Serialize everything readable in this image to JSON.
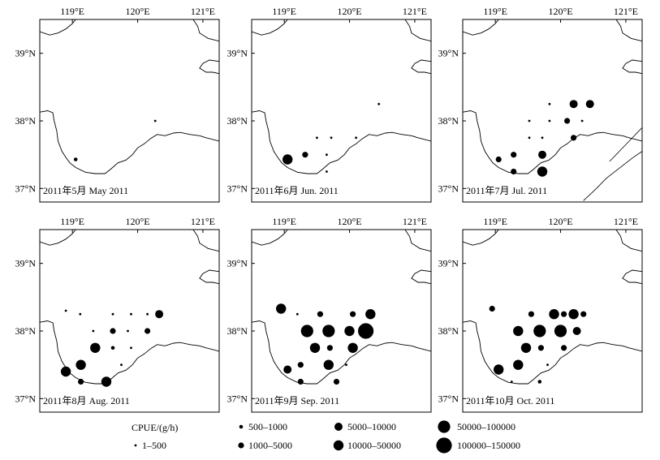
{
  "lon_ticks": [
    "119°E",
    "120°E",
    "121°E"
  ],
  "lat_ticks": [
    "39°N",
    "38°N",
    "37°N"
  ],
  "legend": {
    "title": "CPUE/(g/h)",
    "classes": [
      {
        "label": "1–500",
        "icon": "dot-size-1"
      },
      {
        "label": "500–1000",
        "icon": "dot-size-2"
      },
      {
        "label": "1000–5000",
        "icon": "dot-size-3"
      },
      {
        "label": "5000–10000",
        "icon": "dot-size-4"
      },
      {
        "label": "10000–50000",
        "icon": "dot-size-5"
      },
      {
        "label": "50000–100000",
        "icon": "dot-size-6"
      },
      {
        "label": "100000–150000",
        "icon": "dot-size-7"
      }
    ]
  },
  "panels": [
    {
      "caption": "2011年5月  May 2011",
      "points": [
        [
          119.05,
          37.43,
          2
        ],
        [
          120.27,
          38.0,
          1
        ]
      ]
    },
    {
      "caption": "2011年6月  Jun. 2011",
      "points": [
        [
          119.05,
          37.43,
          5
        ],
        [
          119.32,
          37.5,
          3
        ],
        [
          119.5,
          37.75,
          1
        ],
        [
          119.72,
          37.75,
          1
        ],
        [
          119.65,
          37.5,
          1
        ],
        [
          119.65,
          37.25,
          1
        ],
        [
          120.1,
          37.75,
          1
        ],
        [
          120.45,
          38.25,
          1
        ]
      ]
    },
    {
      "caption": "2011年7月  Jul. 2011",
      "points": [
        [
          119.05,
          37.43,
          3
        ],
        [
          119.28,
          37.5,
          3
        ],
        [
          119.28,
          37.25,
          3
        ],
        [
          119.52,
          37.75,
          1
        ],
        [
          119.52,
          38.0,
          1
        ],
        [
          119.72,
          37.75,
          1
        ],
        [
          119.72,
          37.5,
          4
        ],
        [
          119.72,
          37.25,
          5
        ],
        [
          119.83,
          38.0,
          1
        ],
        [
          119.83,
          38.25,
          1
        ],
        [
          120.1,
          38.0,
          3
        ],
        [
          120.2,
          38.25,
          4
        ],
        [
          120.2,
          37.75,
          3
        ],
        [
          120.33,
          38.0,
          1
        ],
        [
          120.45,
          38.25,
          4
        ]
      ]
    },
    {
      "caption": "2011年8月  Aug. 2011",
      "points": [
        [
          118.9,
          37.4,
          5
        ],
        [
          119.13,
          37.5,
          5
        ],
        [
          119.13,
          37.25,
          3
        ],
        [
          119.35,
          37.75,
          5
        ],
        [
          119.32,
          38.0,
          1
        ],
        [
          119.52,
          37.25,
          5
        ],
        [
          119.62,
          37.75,
          2
        ],
        [
          119.62,
          38.0,
          3
        ],
        [
          119.75,
          37.5,
          1
        ],
        [
          118.9,
          38.3,
          1
        ],
        [
          119.12,
          38.25,
          1
        ],
        [
          119.62,
          38.25,
          1
        ],
        [
          119.85,
          38.0,
          1
        ],
        [
          119.9,
          37.75,
          1
        ],
        [
          119.9,
          38.25,
          1
        ],
        [
          120.15,
          38.0,
          3
        ],
        [
          120.15,
          38.25,
          1
        ],
        [
          120.33,
          38.25,
          4
        ]
      ]
    },
    {
      "caption": "2011年9月  Sep. 2011",
      "points": [
        [
          119.05,
          37.43,
          4
        ],
        [
          119.25,
          37.25,
          3
        ],
        [
          119.25,
          37.5,
          3
        ],
        [
          119.35,
          38.0,
          6
        ],
        [
          119.47,
          37.75,
          5
        ],
        [
          119.55,
          38.25,
          3
        ],
        [
          119.68,
          37.5,
          5
        ],
        [
          119.68,
          38.0,
          6
        ],
        [
          119.7,
          37.75,
          3
        ],
        [
          119.8,
          37.25,
          3
        ],
        [
          119.95,
          37.5,
          1
        ],
        [
          120.0,
          38.0,
          5
        ],
        [
          120.05,
          37.75,
          5
        ],
        [
          120.05,
          38.25,
          3
        ],
        [
          120.25,
          38.0,
          7
        ],
        [
          120.32,
          38.25,
          5
        ],
        [
          119.2,
          38.25,
          1
        ],
        [
          118.95,
          38.33,
          5
        ]
      ]
    },
    {
      "caption": "2011年10月  Oct. 2011",
      "points": [
        [
          119.05,
          37.43,
          5
        ],
        [
          119.25,
          37.25,
          1
        ],
        [
          119.35,
          37.5,
          5
        ],
        [
          119.35,
          38.0,
          5
        ],
        [
          119.47,
          37.75,
          5
        ],
        [
          119.55,
          38.25,
          3
        ],
        [
          119.68,
          37.25,
          2
        ],
        [
          119.68,
          38.0,
          6
        ],
        [
          119.7,
          37.75,
          3
        ],
        [
          119.8,
          37.5,
          1
        ],
        [
          119.9,
          38.25,
          5
        ],
        [
          120.0,
          38.0,
          6
        ],
        [
          120.05,
          37.75,
          3
        ],
        [
          120.05,
          38.25,
          3
        ],
        [
          120.2,
          38.25,
          5
        ],
        [
          120.25,
          38.0,
          4
        ],
        [
          120.35,
          38.25,
          3
        ],
        [
          118.95,
          38.33,
          3
        ]
      ]
    }
  ]
}
